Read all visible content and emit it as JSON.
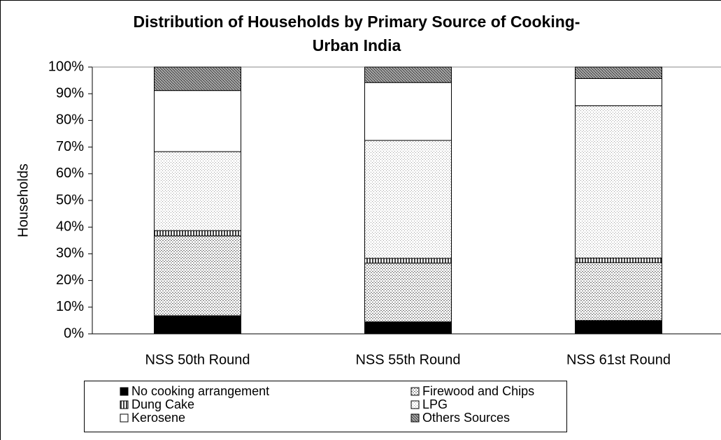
{
  "chart_data": {
    "type": "stacked_bar",
    "title": "Distribution of Households by Primary Source of Cooking- Urban India",
    "y_label": "Households",
    "categories": [
      "NSS 50th Round",
      "NSS 55th Round",
      "NSS 61st Round"
    ],
    "series": [
      {
        "name": "No cooking arrangement",
        "color": "#000000",
        "values": [
          6.8,
          4.5,
          5.0
        ]
      },
      {
        "name": "Firewood and Chips",
        "color": "#707070",
        "values": [
          29.9,
          22.0,
          21.7
        ]
      },
      {
        "name": "Dung Cake",
        "color": "#404040",
        "values": [
          2.0,
          1.8,
          1.7
        ]
      },
      {
        "name": "LPG",
        "color": "#9a9a9a",
        "values": [
          29.6,
          44.2,
          57.1
        ]
      },
      {
        "name": "Kerosene",
        "color": "#ffffff",
        "values": [
          22.9,
          21.7,
          10.2
        ]
      },
      {
        "name": "Others Sources",
        "color": "#505050",
        "values": [
          8.8,
          5.8,
          4.3
        ]
      }
    ],
    "ylim": [
      0,
      100
    ],
    "yticks": [
      {
        "value": 0,
        "label": "0%"
      },
      {
        "value": 10,
        "label": "10%"
      },
      {
        "value": 20,
        "label": "20%"
      },
      {
        "value": 30,
        "label": "30%"
      },
      {
        "value": 40,
        "label": "40%"
      },
      {
        "value": 50,
        "label": "50%"
      },
      {
        "value": 60,
        "label": "60%"
      },
      {
        "value": 70,
        "label": "70%"
      },
      {
        "value": 80,
        "label": "80%"
      },
      {
        "value": 90,
        "label": "90%"
      },
      {
        "value": 100,
        "label": "100%"
      }
    ]
  }
}
